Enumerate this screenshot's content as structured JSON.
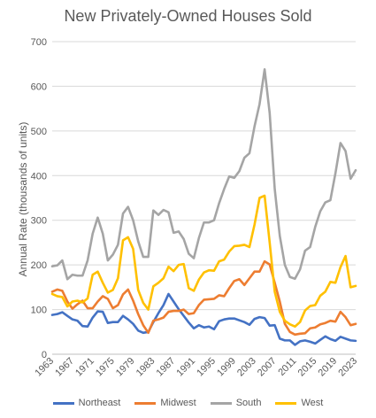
{
  "chart_data": {
    "type": "line",
    "title": "New Privately-Owned Houses Sold",
    "xlabel": "",
    "ylabel": "Annual Rate (thousands of units)",
    "ylim": [
      0,
      700
    ],
    "yticks": [
      0,
      100,
      200,
      300,
      400,
      500,
      600,
      700
    ],
    "xticks": [
      1963,
      1967,
      1971,
      1975,
      1979,
      1983,
      1987,
      1991,
      1995,
      1999,
      2003,
      2007,
      2011,
      2015,
      2019,
      2023
    ],
    "grid": true,
    "legend_position": "bottom",
    "x": [
      1963,
      1964,
      1965,
      1966,
      1967,
      1968,
      1969,
      1970,
      1971,
      1972,
      1973,
      1974,
      1975,
      1976,
      1977,
      1978,
      1979,
      1980,
      1981,
      1982,
      1983,
      1984,
      1985,
      1986,
      1987,
      1988,
      1989,
      1990,
      1991,
      1992,
      1993,
      1994,
      1995,
      1996,
      1997,
      1998,
      1999,
      2000,
      2001,
      2002,
      2003,
      2004,
      2005,
      2006,
      2007,
      2008,
      2009,
      2010,
      2011,
      2012,
      2013,
      2014,
      2015,
      2016,
      2017,
      2018,
      2019,
      2020,
      2021,
      2022,
      2023
    ],
    "series": [
      {
        "name": "Northeast",
        "color": "#4472c4",
        "values": [
          88,
          90,
          94,
          86,
          78,
          75,
          63,
          62,
          82,
          96,
          95,
          70,
          72,
          72,
          86,
          78,
          68,
          53,
          48,
          50,
          72,
          92,
          110,
          135,
          118,
          101,
          86,
          71,
          58,
          65,
          60,
          62,
          56,
          74,
          78,
          80,
          80,
          76,
          72,
          66,
          79,
          83,
          81,
          64,
          65,
          35,
          31,
          31,
          21,
          29,
          31,
          28,
          24,
          32,
          40,
          34,
          30,
          39,
          35,
          31,
          30
        ]
      },
      {
        "name": "Midwest",
        "color": "#ed7d31",
        "values": [
          140,
          145,
          142,
          118,
          102,
          112,
          120,
          103,
          103,
          118,
          130,
          124,
          103,
          110,
          134,
          145,
          120,
          90,
          65,
          48,
          75,
          78,
          82,
          95,
          97,
          97,
          100,
          90,
          92,
          110,
          122,
          123,
          124,
          132,
          130,
          148,
          164,
          168,
          155,
          170,
          185,
          185,
          208,
          201,
          160,
          118,
          68,
          50,
          44,
          46,
          47,
          58,
          60,
          67,
          70,
          75,
          73,
          95,
          83,
          65,
          68
        ]
      },
      {
        "name": "South",
        "color": "#a5a5a5",
        "values": [
          197,
          199,
          210,
          168,
          178,
          176,
          176,
          210,
          270,
          306,
          270,
          210,
          223,
          245,
          315,
          330,
          300,
          253,
          218,
          218,
          322,
          312,
          323,
          318,
          272,
          275,
          258,
          225,
          215,
          260,
          295,
          295,
          300,
          338,
          370,
          398,
          395,
          410,
          440,
          450,
          510,
          560,
          638,
          540,
          370,
          265,
          200,
          173,
          169,
          190,
          232,
          240,
          285,
          320,
          340,
          345,
          405,
          473,
          455,
          393,
          412
        ]
      },
      {
        "name": "West",
        "color": "#ffc000",
        "values": [
          135,
          130,
          128,
          107,
          118,
          120,
          116,
          125,
          178,
          185,
          160,
          138,
          144,
          170,
          255,
          262,
          236,
          144,
          115,
          100,
          152,
          160,
          170,
          196,
          186,
          200,
          202,
          148,
          142,
          167,
          183,
          188,
          187,
          208,
          212,
          230,
          242,
          243,
          245,
          240,
          290,
          350,
          355,
          250,
          140,
          95,
          75,
          67,
          62,
          72,
          98,
          108,
          110,
          131,
          140,
          162,
          160,
          195,
          220,
          150,
          153
        ]
      }
    ]
  }
}
